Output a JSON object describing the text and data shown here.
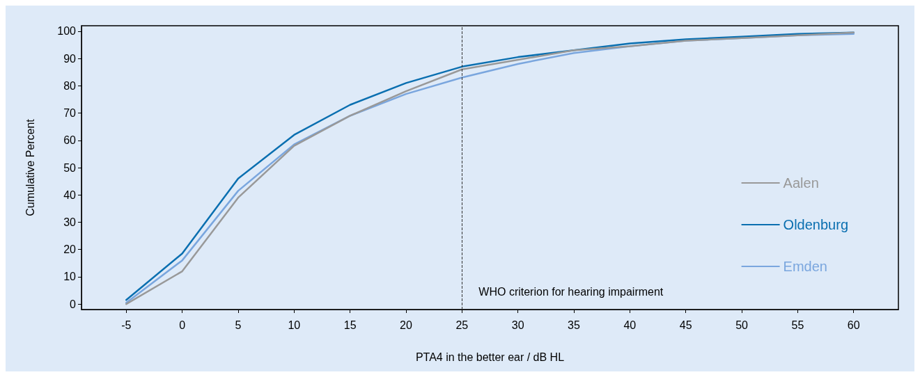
{
  "chart_data": {
    "type": "line",
    "xlabel": "PTA4 in the better ear / dB HL",
    "ylabel": "Cumulative Percent",
    "x": [
      -5,
      0,
      5,
      10,
      15,
      20,
      25,
      30,
      35,
      40,
      45,
      50,
      55,
      60
    ],
    "series": [
      {
        "name": "Aalen",
        "color": "#999999",
        "values": [
          0,
          12,
          39,
          58,
          69,
          78,
          86,
          89.5,
          93,
          94.5,
          96.5,
          97.5,
          98.5,
          99.5
        ]
      },
      {
        "name": "Oldenburg",
        "color": "#0a6fb0",
        "values": [
          1.5,
          18.5,
          46,
          62,
          73,
          81,
          87,
          90.5,
          93,
          95.5,
          97,
          98,
          99,
          99.5
        ]
      },
      {
        "name": "Emden",
        "color": "#7aa6de",
        "values": [
          0.5,
          16,
          41.5,
          58.5,
          69,
          77,
          83,
          88,
          92,
          94.5,
          96.5,
          97.5,
          98.5,
          99
        ]
      }
    ],
    "xlim": [
      -9,
      64
    ],
    "xticks": [
      -5,
      0,
      5,
      10,
      15,
      20,
      25,
      30,
      35,
      40,
      45,
      50,
      55,
      60
    ],
    "ylim": [
      -2,
      102
    ],
    "yticks": [
      0,
      10,
      20,
      30,
      40,
      50,
      60,
      70,
      80,
      90,
      100
    ],
    "ref_lines": [
      {
        "axis": "x",
        "value": 25,
        "label": "WHO criterion for hearing impairment",
        "color": "#333333",
        "line_style": "dashed"
      }
    ],
    "grid": false,
    "legend": "right",
    "marker": "none",
    "line_style": "solid"
  }
}
